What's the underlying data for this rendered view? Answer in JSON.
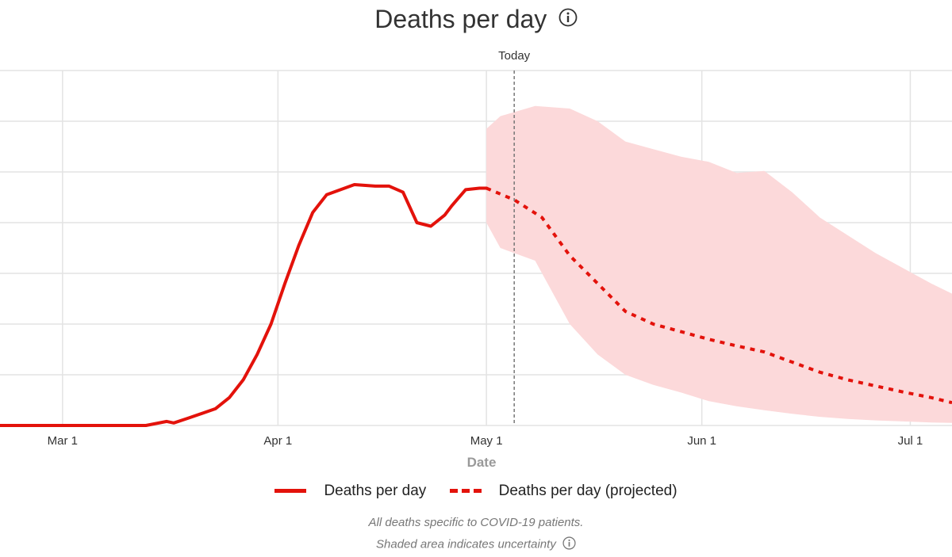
{
  "title": "Deaths per day",
  "icons": {
    "title_info": "info-icon",
    "footnote_info": "info-icon"
  },
  "colors": {
    "line": "#e3120b",
    "band": "#fcd9da",
    "grid": "#e3e3e3",
    "today": "#777777"
  },
  "today_label": "Today",
  "legend": {
    "actual": "Deaths per day",
    "projected": "Deaths per day (projected)"
  },
  "footnotes": {
    "line1": "All deaths specific to COVID-19 patients.",
    "line2": "Shaded area indicates uncertainty"
  },
  "chart_data": {
    "type": "line",
    "title": "Deaths per day",
    "xlabel": "Date",
    "ylabel": "",
    "x_ticks": [
      "Mar 1",
      "Apr 1",
      "May 1",
      "Jun 1",
      "Jul 1"
    ],
    "x_range": [
      "2020-02-21",
      "2020-07-07"
    ],
    "y_range": [
      0,
      7
    ],
    "y_axis_labels_shown": false,
    "grid": true,
    "today": "2020-05-05",
    "legend_position": "bottom",
    "series": [
      {
        "name": "Deaths per day",
        "style": "solid",
        "x": [
          "2020-02-21",
          "2020-03-01",
          "2020-03-13",
          "2020-03-16",
          "2020-03-17",
          "2020-03-19",
          "2020-03-23",
          "2020-03-25",
          "2020-03-27",
          "2020-03-29",
          "2020-03-31",
          "2020-04-02",
          "2020-04-04",
          "2020-04-06",
          "2020-04-08",
          "2020-04-10",
          "2020-04-12",
          "2020-04-15",
          "2020-04-17",
          "2020-04-19",
          "2020-04-21",
          "2020-04-23",
          "2020-04-25",
          "2020-04-26",
          "2020-04-28",
          "2020-04-30",
          "2020-05-01"
        ],
        "values": [
          0,
          0,
          0,
          0.08,
          0.05,
          0.14,
          0.33,
          0.55,
          0.9,
          1.4,
          2.0,
          2.8,
          3.55,
          4.2,
          4.55,
          4.65,
          4.75,
          4.72,
          4.72,
          4.6,
          4.0,
          3.93,
          4.15,
          4.33,
          4.65,
          4.68,
          4.68
        ]
      },
      {
        "name": "Deaths per day (projected)",
        "style": "dashed",
        "x": [
          "2020-05-01",
          "2020-05-05",
          "2020-05-09",
          "2020-05-13",
          "2020-05-17",
          "2020-05-21",
          "2020-05-25",
          "2020-05-29",
          "2020-06-02",
          "2020-06-06",
          "2020-06-10",
          "2020-06-14",
          "2020-06-18",
          "2020-06-22",
          "2020-06-26",
          "2020-06-30",
          "2020-07-04",
          "2020-07-07"
        ],
        "values": [
          4.68,
          4.45,
          4.1,
          3.35,
          2.8,
          2.25,
          2.0,
          1.85,
          1.7,
          1.57,
          1.45,
          1.25,
          1.05,
          0.9,
          0.78,
          0.66,
          0.55,
          0.45
        ]
      }
    ],
    "uncertainty_band": {
      "x": [
        "2020-05-01",
        "2020-05-03",
        "2020-05-08",
        "2020-05-13",
        "2020-05-17",
        "2020-05-21",
        "2020-05-25",
        "2020-05-29",
        "2020-06-02",
        "2020-06-06",
        "2020-06-10",
        "2020-06-14",
        "2020-06-18",
        "2020-06-22",
        "2020-06-26",
        "2020-06-30",
        "2020-07-04",
        "2020-07-07"
      ],
      "upper": [
        5.85,
        6.1,
        6.3,
        6.25,
        6.0,
        5.6,
        5.45,
        5.3,
        5.2,
        4.98,
        5.02,
        4.6,
        4.1,
        3.75,
        3.4,
        3.1,
        2.8,
        2.6
      ],
      "lower": [
        4.0,
        3.5,
        3.25,
        2.0,
        1.4,
        1.0,
        0.8,
        0.65,
        0.48,
        0.38,
        0.3,
        0.23,
        0.17,
        0.13,
        0.1,
        0.08,
        0.06,
        0.05
      ]
    }
  }
}
